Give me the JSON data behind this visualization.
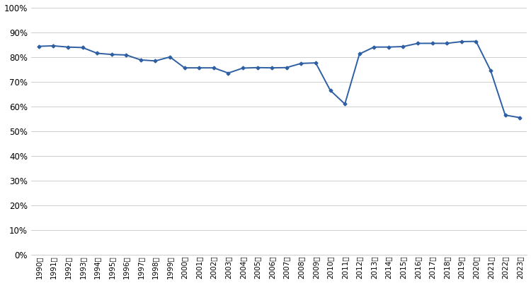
{
  "years": [
    "1990年",
    "1991年",
    "1992年",
    "1993年",
    "1994年",
    "1995年",
    "1996年",
    "1997年",
    "1998年",
    "1999年",
    "2000年",
    "2001年",
    "2002年",
    "2003年",
    "2004年",
    "2005年",
    "2006年",
    "2007年",
    "2008年",
    "2009年",
    "2010年",
    "2011年",
    "2012年",
    "2013年",
    "2014年",
    "2015年",
    "2016年",
    "2017年",
    "2018年",
    "2019年",
    "2020年",
    "2021年",
    "2022年",
    "2023年"
  ],
  "values": [
    0.843,
    0.845,
    0.84,
    0.838,
    0.815,
    0.81,
    0.808,
    0.788,
    0.784,
    0.8,
    0.756,
    0.756,
    0.756,
    0.735,
    0.755,
    0.757,
    0.756,
    0.757,
    0.774,
    0.776,
    0.665,
    0.61,
    0.812,
    0.84,
    0.84,
    0.842,
    0.855,
    0.855,
    0.855,
    0.862,
    0.863,
    0.745,
    0.565,
    0.555
  ],
  "line_color": "#2E5FA3",
  "marker": "D",
  "marker_size": 2.5,
  "line_width": 1.4,
  "ylim": [
    0.0,
    1.0
  ],
  "yticks": [
    0.0,
    0.1,
    0.2,
    0.3,
    0.4,
    0.5,
    0.6,
    0.7,
    0.8,
    0.9,
    1.0
  ],
  "background_color": "#ffffff",
  "grid_color": "#c8c8c8",
  "tick_fontsize": 7.5,
  "ytick_fontsize": 8.5
}
